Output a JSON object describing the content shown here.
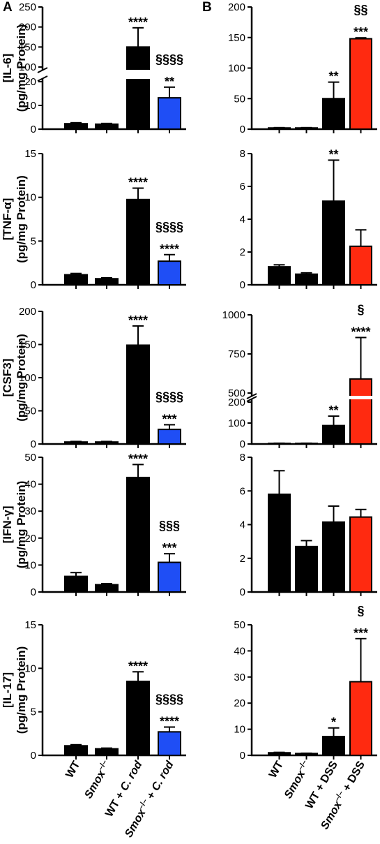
{
  "panel_labels": [
    "A",
    "B"
  ],
  "colors": {
    "black": "#000000",
    "blue": "#1f4ef5",
    "red": "#ff2a10"
  },
  "x_labels": {
    "A": [
      {
        "parts": [
          {
            "t": "WT",
            "i": false
          }
        ]
      },
      {
        "parts": [
          {
            "t": "Smox",
            "i": true
          },
          {
            "t": "–/–",
            "i": false,
            "sup": true
          }
        ]
      },
      {
        "parts": [
          {
            "t": "WT + ",
            "i": false
          },
          {
            "t": "C. rod",
            "i": true
          }
        ]
      },
      {
        "parts": [
          {
            "t": "Smox",
            "i": true
          },
          {
            "t": "–/–",
            "i": false,
            "sup": true
          },
          {
            "t": " + ",
            "i": false
          },
          {
            "t": "C. rod",
            "i": true
          }
        ]
      }
    ],
    "B": [
      {
        "parts": [
          {
            "t": "WT",
            "i": false
          }
        ]
      },
      {
        "parts": [
          {
            "t": "Smox",
            "i": true
          },
          {
            "t": "–/–",
            "i": false,
            "sup": true
          }
        ]
      },
      {
        "parts": [
          {
            "t": "WT + DSS",
            "i": false
          }
        ]
      },
      {
        "parts": [
          {
            "t": "Smox",
            "i": true
          },
          {
            "t": "–/–",
            "i": false,
            "sup": true
          },
          {
            "t": " + DSS",
            "i": false
          }
        ]
      }
    ]
  },
  "chart_data": [
    {
      "type": "bar",
      "panel": "A",
      "ylabel_top": "[IL-6]",
      "ylabel_bottom": "(pg/mg Protein)",
      "categories": [
        "WT",
        "Smox–/–",
        "WT + C. rod",
        "Smox–/– + C. rod"
      ],
      "values": [
        2.3,
        2.1,
        150,
        13.2
      ],
      "errors": [
        0.4,
        0.3,
        48,
        4.5
      ],
      "colors": [
        "black",
        "black",
        "black",
        "blue"
      ],
      "annotations": [
        [],
        [],
        [
          "****"
        ],
        [
          "§§§§",
          "**"
        ]
      ],
      "axis_break": {
        "lower": [
          0,
          20
        ],
        "upper": [
          100,
          250
        ]
      },
      "yticks_lower": [
        0,
        10,
        20
      ],
      "yticks_upper": [
        100,
        150,
        200,
        250
      ]
    },
    {
      "type": "bar",
      "panel": "A",
      "ylabel_top": "[TNF-α]",
      "ylabel_bottom": "(pg/mg Protein)",
      "categories": [
        "WT",
        "Smox–/–",
        "WT + C. rod",
        "Smox–/– + C. rod"
      ],
      "values": [
        1.15,
        0.7,
        9.75,
        2.7
      ],
      "errors": [
        0.15,
        0.1,
        1.3,
        0.75
      ],
      "colors": [
        "black",
        "black",
        "black",
        "blue"
      ],
      "annotations": [
        [],
        [],
        [
          "****"
        ],
        [
          "§§§§",
          "****"
        ]
      ],
      "ylim": [
        0,
        15
      ],
      "yticks": [
        0,
        5,
        10,
        15
      ]
    },
    {
      "type": "bar",
      "panel": "A",
      "ylabel_top": "[CSF3]",
      "ylabel_bottom": "(pg/mg Protein)",
      "categories": [
        "WT",
        "Smox–/–",
        "WT + C. rod",
        "Smox–/– + C. rod"
      ],
      "values": [
        3,
        3,
        149,
        22
      ],
      "errors": [
        0.8,
        0.8,
        29,
        7
      ],
      "colors": [
        "black",
        "black",
        "black",
        "blue"
      ],
      "annotations": [
        [],
        [],
        [
          "****"
        ],
        [
          "§§§§",
          "***"
        ]
      ],
      "ylim": [
        0,
        200
      ],
      "yticks": [
        0,
        50,
        100,
        150,
        200
      ]
    },
    {
      "type": "bar",
      "panel": "A",
      "ylabel_top": "[IFN-γ]",
      "ylabel_bottom": "(pg/mg Protein)",
      "categories": [
        "WT",
        "Smox–/–",
        "WT + C. rod",
        "Smox–/– + C. rod"
      ],
      "values": [
        5.8,
        2.7,
        42.5,
        11
      ],
      "errors": [
        1.4,
        0.4,
        4.8,
        3.2
      ],
      "colors": [
        "black",
        "black",
        "black",
        "blue"
      ],
      "annotations": [
        [],
        [],
        [
          "****"
        ],
        [
          "§§§",
          "***"
        ]
      ],
      "ylim": [
        0,
        50
      ],
      "yticks": [
        0,
        10,
        20,
        30,
        40,
        50
      ]
    },
    {
      "type": "bar",
      "panel": "A",
      "ylabel_top": "[IL-17]",
      "ylabel_bottom": "(pg/mg Protein)",
      "categories": [
        "WT",
        "Smox–/–",
        "WT + C. rod",
        "Smox–/– + C. rod"
      ],
      "values": [
        1.1,
        0.75,
        8.5,
        2.7
      ],
      "errors": [
        0.12,
        0.08,
        1.1,
        0.55
      ],
      "colors": [
        "black",
        "black",
        "black",
        "blue"
      ],
      "annotations": [
        [],
        [],
        [
          "****"
        ],
        [
          "§§§§",
          "****"
        ]
      ],
      "ylim": [
        0,
        15
      ],
      "yticks": [
        0,
        5,
        10,
        15
      ]
    },
    {
      "type": "bar",
      "panel": "B",
      "categories": [
        "WT",
        "Smox–/–",
        "WT + DSS",
        "Smox–/– + DSS"
      ],
      "values": [
        2,
        2,
        50,
        148
      ],
      "errors": [
        0.5,
        0.5,
        27,
        1.5
      ],
      "colors": [
        "black",
        "black",
        "black",
        "red"
      ],
      "annotations": [
        [],
        [],
        [
          "**"
        ],
        [
          "§§",
          "***"
        ]
      ],
      "ylim": [
        0,
        200
      ],
      "yticks": [
        0,
        50,
        100,
        150,
        200
      ]
    },
    {
      "type": "bar",
      "panel": "B",
      "categories": [
        "WT",
        "Smox–/–",
        "WT + DSS",
        "Smox–/– + DSS"
      ],
      "values": [
        1.1,
        0.65,
        5.1,
        2.35
      ],
      "errors": [
        0.12,
        0.08,
        2.5,
        1.0
      ],
      "colors": [
        "black",
        "black",
        "black",
        "red"
      ],
      "annotations": [
        [],
        [],
        [
          "**"
        ],
        []
      ],
      "ylim": [
        0,
        8
      ],
      "yticks": [
        0,
        2,
        4,
        6,
        8
      ]
    },
    {
      "type": "bar",
      "panel": "B",
      "categories": [
        "WT",
        "Smox–/–",
        "WT + DSS",
        "Smox–/– + DSS"
      ],
      "values": [
        3,
        3,
        88,
        590
      ],
      "errors": [
        0.8,
        0.8,
        45,
        265
      ],
      "colors": [
        "black",
        "black",
        "black",
        "red"
      ],
      "annotations": [
        [],
        [],
        [
          "**"
        ],
        [
          "§",
          "****"
        ]
      ],
      "axis_break": {
        "lower": [
          0,
          200
        ],
        "upper": [
          500,
          1000
        ]
      },
      "yticks_lower": [
        0,
        100,
        200
      ],
      "yticks_upper": [
        500,
        750,
        1000
      ]
    },
    {
      "type": "bar",
      "panel": "B",
      "categories": [
        "WT",
        "Smox–/–",
        "WT + DSS",
        "Smox–/– + DSS"
      ],
      "values": [
        5.8,
        2.7,
        4.15,
        4.45
      ],
      "errors": [
        1.4,
        0.35,
        0.95,
        0.45
      ],
      "colors": [
        "black",
        "black",
        "black",
        "red"
      ],
      "annotations": [
        [],
        [],
        [],
        []
      ],
      "ylim": [
        0,
        8
      ],
      "yticks": [
        0,
        2,
        4,
        6,
        8
      ]
    },
    {
      "type": "bar",
      "panel": "B",
      "categories": [
        "WT",
        "Smox–/–",
        "WT + DSS",
        "Smox–/– + DSS"
      ],
      "values": [
        1,
        0.7,
        7.2,
        28.2
      ],
      "errors": [
        0.15,
        0.1,
        3.3,
        16.5
      ],
      "colors": [
        "black",
        "black",
        "black",
        "red"
      ],
      "annotations": [
        [],
        [],
        [
          "*"
        ],
        [
          "§",
          "***"
        ]
      ],
      "ylim": [
        0,
        50
      ],
      "yticks": [
        0,
        10,
        20,
        30,
        40,
        50
      ]
    }
  ]
}
